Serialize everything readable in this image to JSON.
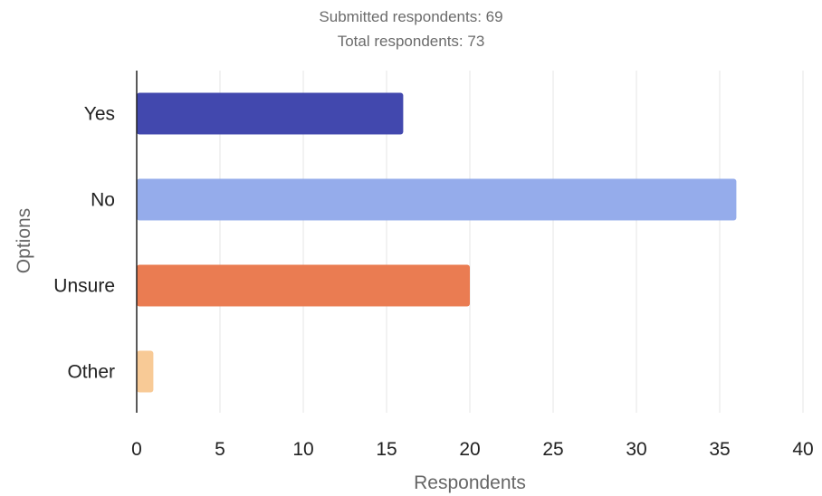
{
  "header": {
    "submitted_label": "Submitted respondents: 69",
    "total_label": "Total respondents: 73"
  },
  "chart_data": {
    "type": "bar",
    "orientation": "horizontal",
    "categories": [
      "Yes",
      "No",
      "Unsure",
      "Other"
    ],
    "values": [
      16,
      36,
      20,
      1
    ],
    "colors": [
      "#4248AE",
      "#95ACEB",
      "#EA7C52",
      "#F8CA96"
    ],
    "xlabel": "Respondents",
    "ylabel": "Options",
    "xlim": [
      0,
      40
    ],
    "xticks": [
      0,
      5,
      10,
      15,
      20,
      25,
      30,
      35,
      40
    ],
    "grid": true
  }
}
